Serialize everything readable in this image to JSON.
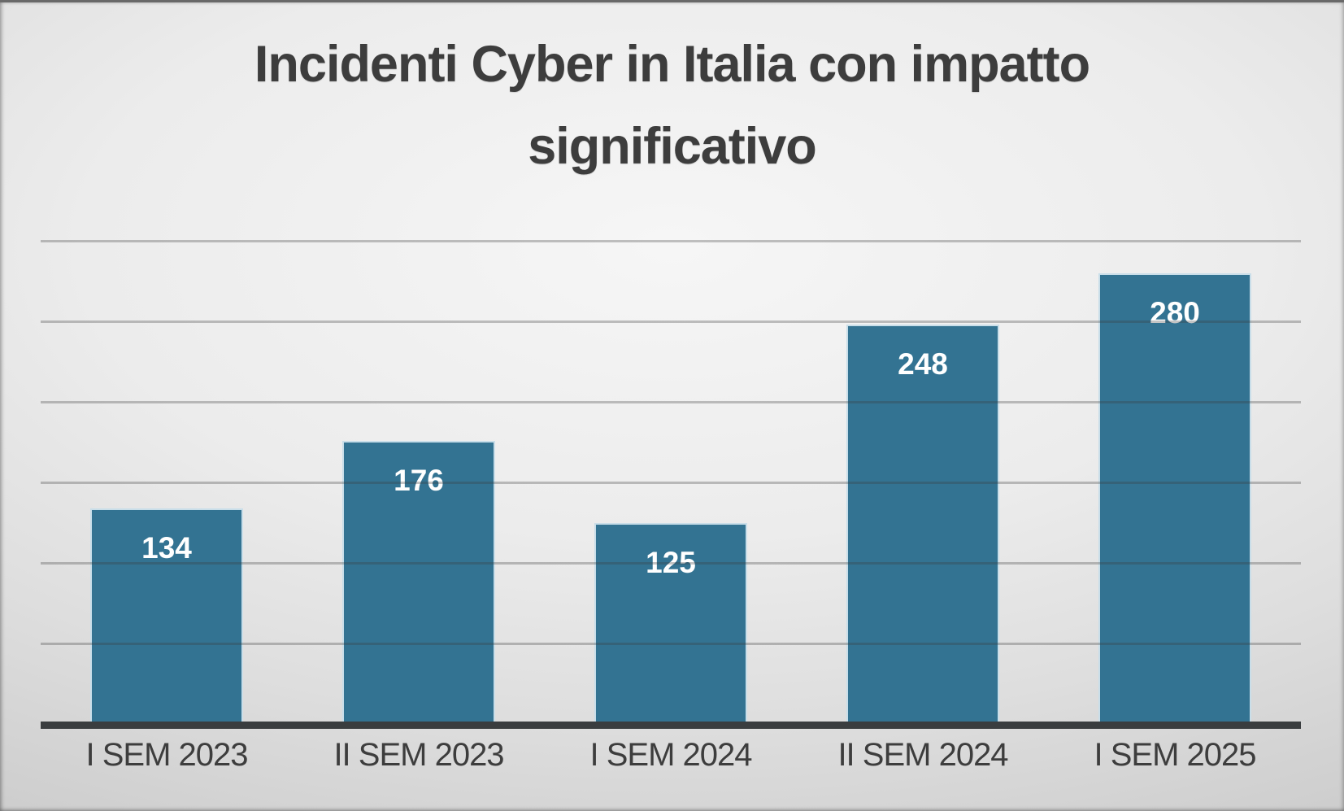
{
  "slide": {
    "title": "Incidenti Cyber in Italia con impatto significativo"
  },
  "chart_data": {
    "type": "bar",
    "title": "Incidenti Cyber in Italia con impatto significativo",
    "categories": [
      "I SEM 2023",
      "II SEM 2023",
      "I SEM 2024",
      "II SEM 2024",
      "I SEM 2025"
    ],
    "values": [
      134,
      176,
      125,
      248,
      280
    ],
    "xlabel": "",
    "ylabel": "",
    "ylim": [
      0,
      300
    ],
    "gridline_values": [
      300,
      250,
      200,
      150,
      100,
      50
    ],
    "gridline_interval": 50,
    "axis_tick_labels_visible": false,
    "legend": "none",
    "data_label_position": "inside-end",
    "colors": {
      "bar_fill": "#337392",
      "bar_border": "#c9dee9",
      "value_label": "#ffffff",
      "title_text": "#3d3d3d",
      "category_label": "#3d3d3d",
      "gridline": "#9f9f9f",
      "axis_line": "#3a3d3f",
      "background": "#e6e6e6"
    }
  }
}
